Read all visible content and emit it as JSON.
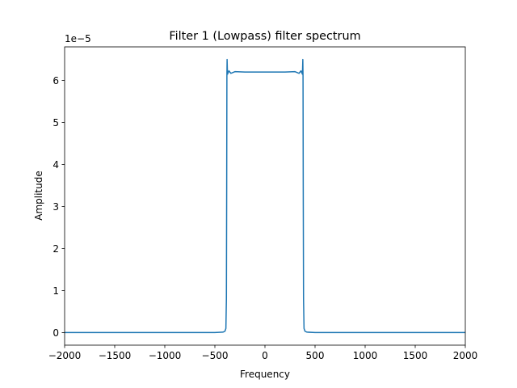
{
  "chart_data": {
    "type": "line",
    "title": "Filter 1 (Lowpass) filter spectrum",
    "xlabel": "Frequency",
    "ylabel": "Amplitude",
    "offset_text": "1e−5",
    "xlim": [
      -2000,
      2000
    ],
    "ylim": [
      -0.3,
      6.8
    ],
    "xticks": [
      -2000,
      -1500,
      -1000,
      -500,
      0,
      500,
      1000,
      1500,
      2000
    ],
    "xtick_labels": [
      "−2000",
      "−1500",
      "−1000",
      "−500",
      "0",
      "500",
      "1000",
      "1500",
      "2000"
    ],
    "yticks": [
      0,
      1,
      2,
      3,
      4,
      5,
      6
    ],
    "ytick_labels": [
      "0",
      "1",
      "2",
      "3",
      "4",
      "5",
      "6"
    ],
    "y_scale_note": "y values in units of 1e-5",
    "grid": false,
    "legend": "none",
    "series": [
      {
        "color": "#1f77b4",
        "points": [
          [
            -2000,
            0
          ],
          [
            -500,
            0
          ],
          [
            -420,
            0.01
          ],
          [
            -400,
            0.03
          ],
          [
            -390,
            0.1
          ],
          [
            -385,
            0.8
          ],
          [
            -382,
            3.5
          ],
          [
            -380,
            6.1
          ],
          [
            -378,
            6.5
          ],
          [
            -374,
            6.15
          ],
          [
            -360,
            6.23
          ],
          [
            -340,
            6.17
          ],
          [
            -300,
            6.21
          ],
          [
            -200,
            6.2
          ],
          [
            0,
            6.2
          ],
          [
            200,
            6.2
          ],
          [
            300,
            6.21
          ],
          [
            340,
            6.17
          ],
          [
            360,
            6.23
          ],
          [
            374,
            6.15
          ],
          [
            378,
            6.5
          ],
          [
            380,
            6.1
          ],
          [
            382,
            3.5
          ],
          [
            385,
            0.8
          ],
          [
            390,
            0.1
          ],
          [
            400,
            0.03
          ],
          [
            420,
            0.01
          ],
          [
            500,
            0
          ],
          [
            2000,
            0
          ]
        ]
      }
    ]
  }
}
